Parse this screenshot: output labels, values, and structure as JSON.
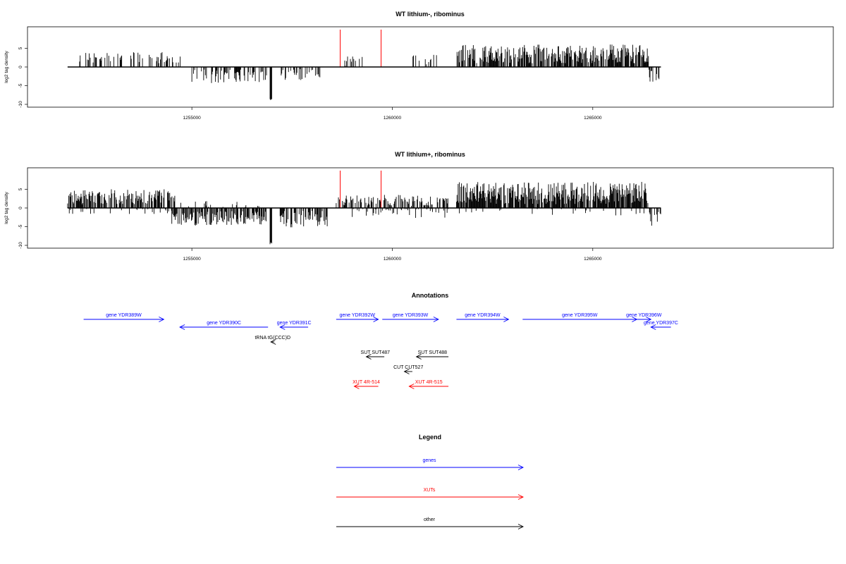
{
  "chart_data": [
    {
      "type": "bar",
      "title": "WT lithium-, ribominus",
      "ylabel": "log2 tag density",
      "xlabel": "",
      "xlim": [
        1250900,
        1271000
      ],
      "ylim": [
        -10,
        10
      ],
      "yticks": [
        -10,
        -5,
        0,
        5
      ],
      "xticks": [
        1255000,
        1260000,
        1265000
      ],
      "xtick_labels": [
        "1255000",
        "1260000",
        "1265000"
      ],
      "grid": false,
      "data_extent": [
        1251900,
        1266700
      ],
      "marker_positions": [
        1258700,
        1259720
      ],
      "marker_color": "#ff0000",
      "segments": [
        {
          "start": 1252200,
          "end": 1254400,
          "sign": 1,
          "base": 2.5,
          "amp": 1.5,
          "density": 0.35
        },
        {
          "start": 1254400,
          "end": 1255000,
          "sign": 1,
          "base": 2.0,
          "amp": 1.0,
          "density": 0.2
        },
        {
          "start": 1255000,
          "end": 1256900,
          "sign": -1,
          "base": 2.5,
          "amp": 1.8,
          "density": 0.35
        },
        {
          "start": 1256950,
          "end": 1257000,
          "sign": -1,
          "base": 8.8,
          "amp": 0.3,
          "density": 1.0
        },
        {
          "start": 1257200,
          "end": 1258200,
          "sign": -1,
          "base": 2.0,
          "amp": 1.5,
          "density": 0.3
        },
        {
          "start": 1258800,
          "end": 1259400,
          "sign": 1,
          "base": 1.5,
          "amp": 1.5,
          "density": 0.15
        },
        {
          "start": 1260500,
          "end": 1261200,
          "sign": 1,
          "base": 2.0,
          "amp": 1.5,
          "density": 0.2
        },
        {
          "start": 1261600,
          "end": 1266400,
          "sign": 1,
          "base": 3.5,
          "amp": 2.5,
          "density": 0.75
        },
        {
          "start": 1266400,
          "end": 1266700,
          "sign": -1,
          "base": 2.5,
          "amp": 2.0,
          "density": 0.5
        }
      ]
    },
    {
      "type": "bar",
      "title": "WT lithium+, ribominus",
      "ylabel": "log2 tag density",
      "xlabel": "",
      "xlim": [
        1250900,
        1271000
      ],
      "ylim": [
        -10,
        10
      ],
      "yticks": [
        -10,
        -5,
        0,
        5
      ],
      "xticks": [
        1255000,
        1260000,
        1265000
      ],
      "xtick_labels": [
        "1255000",
        "1260000",
        "1265000"
      ],
      "grid": false,
      "data_extent": [
        1251900,
        1266700
      ],
      "marker_positions": [
        1258700,
        1259720
      ],
      "marker_color": "#ff0000",
      "segments": [
        {
          "start": 1251900,
          "end": 1254600,
          "sign": 1,
          "base": 3.0,
          "amp": 2.0,
          "density": 0.7
        },
        {
          "start": 1251900,
          "end": 1254600,
          "sign": -1,
          "base": 0.8,
          "amp": 0.8,
          "density": 0.1
        },
        {
          "start": 1254500,
          "end": 1256900,
          "sign": -1,
          "base": 2.8,
          "amp": 2.0,
          "density": 0.6
        },
        {
          "start": 1254500,
          "end": 1256900,
          "sign": 1,
          "base": 1.0,
          "amp": 1.0,
          "density": 0.12
        },
        {
          "start": 1256950,
          "end": 1257000,
          "sign": -1,
          "base": 9.5,
          "amp": 0.3,
          "density": 1.0
        },
        {
          "start": 1257200,
          "end": 1258400,
          "sign": -1,
          "base": 3.0,
          "amp": 2.2,
          "density": 0.6
        },
        {
          "start": 1258600,
          "end": 1261400,
          "sign": 1,
          "base": 2.0,
          "amp": 1.5,
          "density": 0.45
        },
        {
          "start": 1259000,
          "end": 1261400,
          "sign": -1,
          "base": 1.2,
          "amp": 1.5,
          "density": 0.2
        },
        {
          "start": 1261600,
          "end": 1266400,
          "sign": 1,
          "base": 4.0,
          "amp": 3.0,
          "density": 0.85
        },
        {
          "start": 1261600,
          "end": 1266400,
          "sign": -1,
          "base": 1.0,
          "amp": 1.0,
          "density": 0.1
        },
        {
          "start": 1266400,
          "end": 1266700,
          "sign": -1,
          "base": 3.0,
          "amp": 2.0,
          "density": 0.5
        }
      ]
    }
  ],
  "annotations": {
    "title": "Annotations",
    "items": [
      {
        "label": "gene YDR389W",
        "start": 1252300,
        "end": 1254300,
        "dir": "right",
        "row": 0,
        "color": "#0000ff"
      },
      {
        "label": "gene YDR390C",
        "start": 1254700,
        "end": 1256900,
        "dir": "left",
        "row": 1,
        "color": "#0000ff"
      },
      {
        "label": "gene YDR391C",
        "start": 1257200,
        "end": 1257900,
        "dir": "left",
        "row": 1,
        "color": "#0000ff"
      },
      {
        "label": "gene YDR392W",
        "start": 1258600,
        "end": 1259650,
        "dir": "right",
        "row": 0,
        "color": "#0000ff"
      },
      {
        "label": "gene YDR393W",
        "start": 1259750,
        "end": 1261150,
        "dir": "right",
        "row": 0,
        "color": "#0000ff"
      },
      {
        "label": "gene YDR394W",
        "start": 1261600,
        "end": 1262900,
        "dir": "right",
        "row": 0,
        "color": "#0000ff"
      },
      {
        "label": "gene YDR395W",
        "start": 1263250,
        "end": 1266100,
        "dir": "right",
        "row": 0,
        "color": "#0000ff"
      },
      {
        "label": "gene YDR396W",
        "start": 1266100,
        "end": 1266450,
        "dir": "right",
        "row": 0,
        "color": "#0000ff"
      },
      {
        "label": "gene YDR397C",
        "start": 1266450,
        "end": 1266950,
        "dir": "left",
        "row": 1,
        "color": "#0000ff"
      },
      {
        "label": "tRNA tG(CCC)D",
        "start": 1256970,
        "end": 1257060,
        "dir": "left",
        "row": 2,
        "color": "#000000"
      },
      {
        "label": "SUT SUT487",
        "start": 1259350,
        "end": 1259800,
        "dir": "left",
        "row": 3,
        "color": "#000000"
      },
      {
        "label": "SUT SUT488",
        "start": 1260600,
        "end": 1261400,
        "dir": "left",
        "row": 3,
        "color": "#000000"
      },
      {
        "label": "CUT CUT527",
        "start": 1260300,
        "end": 1260500,
        "dir": "left",
        "row": 4,
        "color": "#000000"
      },
      {
        "label": "XUT 4R-514",
        "start": 1259050,
        "end": 1259650,
        "dir": "left",
        "row": 5,
        "color": "#ff0000"
      },
      {
        "label": "XUT 4R-515",
        "start": 1260420,
        "end": 1261400,
        "dir": "left",
        "row": 5,
        "color": "#ff0000"
      }
    ]
  },
  "legend": {
    "title": "Legend",
    "entries": [
      {
        "label": "genes",
        "color": "#0000ff"
      },
      {
        "label": "XUTs",
        "color": "#ff0000"
      },
      {
        "label": "other",
        "color": "#000000"
      }
    ]
  }
}
